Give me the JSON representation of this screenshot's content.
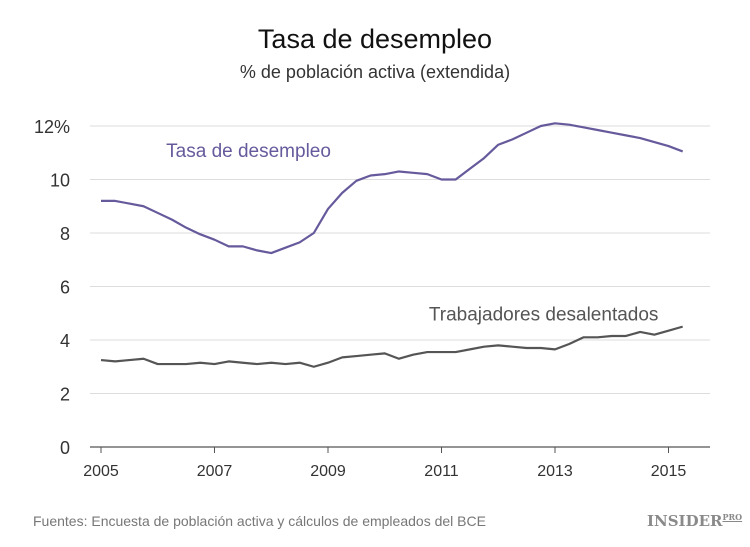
{
  "header": {
    "title": "Tasa de desempleo",
    "subtitle": "% de población activa (extendida)"
  },
  "footer": {
    "source": "Fuentes: Encuesta de población activa y cálculos de empleados del BCE",
    "logo": "INSIDER",
    "logo_sup": "PRO"
  },
  "chart_data": {
    "type": "line",
    "title": "Tasa de desempleo",
    "subtitle": "% de población activa (extendida)",
    "xlim": [
      2004.9,
      2015.7
    ],
    "ylim": [
      0,
      12
    ],
    "grid": true,
    "x_ticks": [
      2005,
      2007,
      2009,
      2011,
      2013,
      2015
    ],
    "x_tick_labels": [
      "2005",
      "2007",
      "2009",
      "2011",
      "2013",
      "2015"
    ],
    "y_ticks": [
      0,
      2,
      4,
      6,
      8,
      10,
      12
    ],
    "y_tick_labels": [
      "0",
      "2",
      "4",
      "6",
      "8",
      "10",
      "12%"
    ],
    "x_start": 2005,
    "x_step": 0.25,
    "series": [
      {
        "name": "Tasa de desempleo",
        "color": "#675a9c",
        "label_at": [
          2007.6,
          11.1
        ],
        "values": [
          9.2,
          9.2,
          9.1,
          9.0,
          8.75,
          8.5,
          8.2,
          7.95,
          7.75,
          7.5,
          7.5,
          7.35,
          7.25,
          7.45,
          7.65,
          8.0,
          8.9,
          9.5,
          9.95,
          10.15,
          10.2,
          10.3,
          10.25,
          10.2,
          10.0,
          10.0,
          10.4,
          10.8,
          11.3,
          11.5,
          11.75,
          12.0,
          12.1,
          12.05,
          11.95,
          11.85,
          11.75,
          11.65,
          11.55,
          11.4,
          11.25,
          11.05
        ]
      },
      {
        "name": "Trabajadores desalentados",
        "color": "#555555",
        "label_at": [
          2012.8,
          5.0
        ],
        "values": [
          3.25,
          3.2,
          3.25,
          3.3,
          3.1,
          3.1,
          3.1,
          3.15,
          3.1,
          3.2,
          3.15,
          3.1,
          3.15,
          3.1,
          3.15,
          3.0,
          3.15,
          3.35,
          3.4,
          3.45,
          3.5,
          3.3,
          3.45,
          3.55,
          3.55,
          3.55,
          3.65,
          3.75,
          3.8,
          3.75,
          3.7,
          3.7,
          3.65,
          3.85,
          4.1,
          4.1,
          4.15,
          4.15,
          4.3,
          4.2,
          4.35,
          4.5
        ]
      }
    ]
  }
}
